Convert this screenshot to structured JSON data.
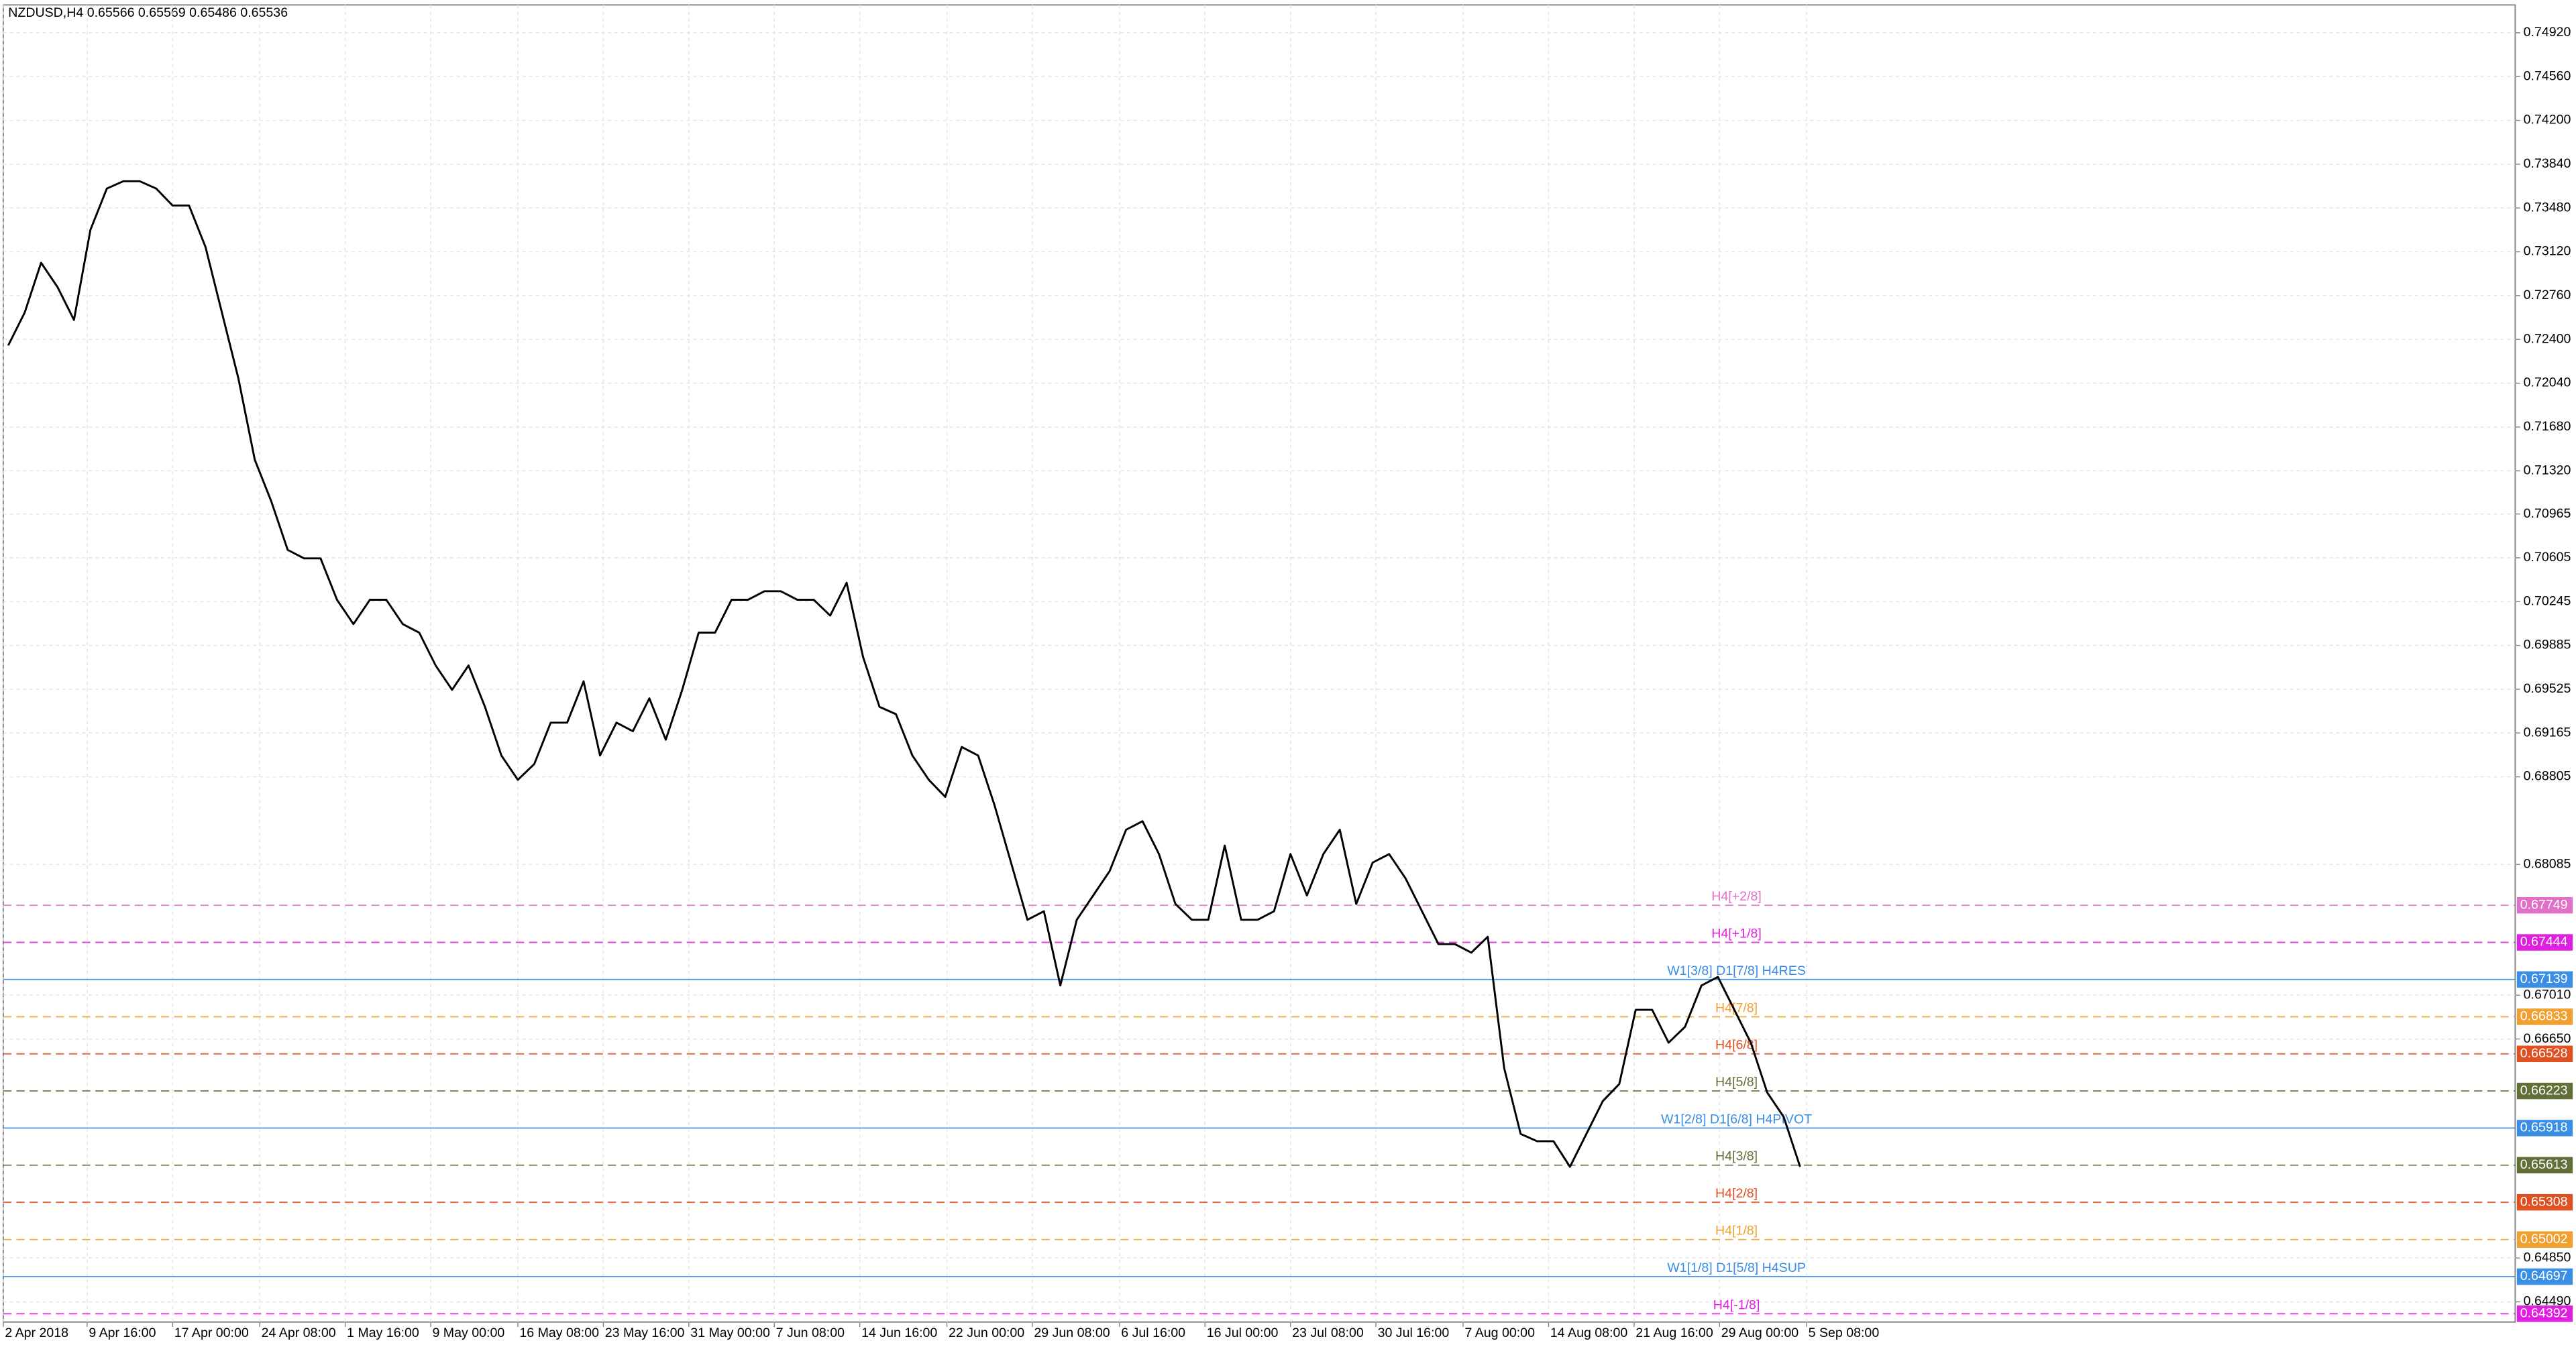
{
  "chart_data": {
    "type": "line",
    "title": "NZDUSD,H4  0.65566 0.65569 0.65486 0.65536",
    "x": [
      0,
      1,
      2,
      3,
      4,
      5,
      6,
      7,
      8,
      9,
      10,
      11,
      12,
      13,
      14,
      15,
      16,
      17,
      18,
      19,
      20,
      21,
      22,
      23,
      24,
      25,
      26,
      27,
      28,
      29,
      30,
      31,
      32,
      33,
      34,
      35,
      36,
      37,
      38,
      39,
      40,
      41,
      42,
      43,
      44,
      45,
      46,
      47,
      48,
      49,
      50,
      51,
      52,
      53,
      54,
      55,
      56,
      57,
      58,
      59,
      60,
      61,
      62,
      63,
      64,
      65,
      66,
      67,
      68,
      69,
      70,
      71,
      72,
      73,
      74,
      75,
      76,
      77,
      78,
      79,
      80,
      81,
      82,
      83,
      84,
      85,
      86,
      87,
      88,
      89,
      90,
      91,
      92,
      93,
      94,
      95,
      96,
      97,
      98,
      99,
      100,
      101,
      102,
      103,
      104,
      105,
      106,
      107,
      108,
      109
    ],
    "series": [
      {
        "name": "NZDUSD",
        "color": "#000000",
        "values": [
          0.7235,
          0.7262,
          0.7303,
          0.7283,
          0.7256,
          0.733,
          0.7364,
          0.737,
          0.737,
          0.7364,
          0.735,
          0.735,
          0.7316,
          0.7262,
          0.7208,
          0.7141,
          0.7107,
          0.7067,
          0.706,
          0.706,
          0.7026,
          0.7006,
          0.7026,
          0.7026,
          0.7006,
          0.6999,
          0.6972,
          0.6952,
          0.6972,
          0.6938,
          0.6898,
          0.6878,
          0.6891,
          0.6925,
          0.6925,
          0.6959,
          0.6898,
          0.6925,
          0.6918,
          0.6945,
          0.6911,
          0.6952,
          0.6999,
          0.6999,
          0.7026,
          0.7026,
          0.7033,
          0.7033,
          0.7026,
          0.7026,
          0.7013,
          0.704,
          0.6979,
          0.6938,
          0.6932,
          0.6898,
          0.6878,
          0.6864,
          0.6905,
          0.6898,
          0.6857,
          0.681,
          0.6763,
          0.677,
          0.6709,
          0.6763,
          0.6783,
          0.6803,
          0.6837,
          0.6844,
          0.6817,
          0.6776,
          0.6763,
          0.6763,
          0.6824,
          0.6763,
          0.6763,
          0.677,
          0.6817,
          0.6783,
          0.6817,
          0.6837,
          0.6776,
          0.681,
          0.6817,
          0.6797,
          0.677,
          0.6743,
          0.6743,
          0.6736,
          0.6749,
          0.6641,
          0.6587,
          0.6581,
          0.6581,
          0.656,
          0.6587,
          0.6614,
          0.6628,
          0.6689,
          0.6689,
          0.6662,
          0.6675,
          0.6709,
          0.6716,
          0.6689,
          0.6662,
          0.6621,
          0.6601,
          0.656
        ]
      }
    ],
    "xlim": [
      -0.3,
      152.5
    ],
    "xticks": [
      {
        "value": -0.3,
        "label": "2 Apr 2018"
      },
      {
        "value": 4.8,
        "label": "9 Apr 16:00"
      },
      {
        "value": 10.0,
        "label": "17 Apr 00:00"
      },
      {
        "value": 15.3,
        "label": "24 Apr 08:00"
      },
      {
        "value": 20.5,
        "label": "1 May 16:00"
      },
      {
        "value": 25.7,
        "label": "9 May 00:00"
      },
      {
        "value": 31.0,
        "label": "16 May 08:00"
      },
      {
        "value": 36.2,
        "label": "23 May 16:00"
      },
      {
        "value": 41.4,
        "label": "31 May 00:00"
      },
      {
        "value": 46.6,
        "label": "7 Jun 08:00"
      },
      {
        "value": 51.8,
        "label": "14 Jun 16:00"
      },
      {
        "value": 57.1,
        "label": "22 Jun 00:00"
      },
      {
        "value": 62.3,
        "label": "29 Jun 08:00"
      },
      {
        "value": 67.6,
        "label": "6 Jul 16:00"
      },
      {
        "value": 72.8,
        "label": "16 Jul 00:00"
      },
      {
        "value": 78.0,
        "label": "23 Jul 08:00"
      },
      {
        "value": 83.2,
        "label": "30 Jul 16:00"
      },
      {
        "value": 88.5,
        "label": "7 Aug 00:00"
      },
      {
        "value": 93.7,
        "label": "14 Aug 08:00"
      },
      {
        "value": 98.9,
        "label": "21 Aug 16:00"
      },
      {
        "value": 104.1,
        "label": "29 Aug 00:00"
      },
      {
        "value": 109.4,
        "label": "5 Sep 08:00"
      }
    ],
    "ylim": [
      0.64324,
      0.75149
    ],
    "yticks": [
      {
        "value": 0.7492,
        "label": "0.74920"
      },
      {
        "value": 0.7456,
        "label": "0.74560"
      },
      {
        "value": 0.742,
        "label": "0.74200"
      },
      {
        "value": 0.7384,
        "label": "0.73840"
      },
      {
        "value": 0.7348,
        "label": "0.73480"
      },
      {
        "value": 0.7312,
        "label": "0.73120"
      },
      {
        "value": 0.7276,
        "label": "0.72760"
      },
      {
        "value": 0.724,
        "label": "0.72400"
      },
      {
        "value": 0.7204,
        "label": "0.72040"
      },
      {
        "value": 0.7168,
        "label": "0.71680"
      },
      {
        "value": 0.7132,
        "label": "0.71320"
      },
      0.70965,
      0.70605,
      0.70245,
      0.69885,
      0.69525,
      0.69165,
      0.68805,
      0.68085,
      {
        "value": 0.6701,
        "label": "0.67010"
      },
      {
        "value": 0.6665,
        "label": "0.66650"
      },
      {
        "value": 0.6485,
        "label": "0.64850"
      },
      {
        "value": 0.6449,
        "label": "0.64490"
      }
    ],
    "grid": true,
    "levels": [
      {
        "label": "H4[+2/8]",
        "value": 0.67749,
        "color": "#e070c8",
        "dashed": true
      },
      {
        "label": "H4[+1/8]",
        "value": 0.67444,
        "color": "#e020e0",
        "dashed": true
      },
      {
        "label": "W1[3/8] D1[7/8] H4RES",
        "value": 0.67139,
        "color": "#3a8ee6",
        "dashed": false
      },
      {
        "label": "H4[7/8]",
        "value": 0.66833,
        "color": "#f0a030",
        "dashed": true
      },
      {
        "label": "H4[6/8]",
        "value": 0.66528,
        "color": "#e05020",
        "dashed": true
      },
      {
        "label": "H4[5/8]",
        "value": 0.66223,
        "color": "#607038",
        "dashed": true
      },
      {
        "label": "W1[2/8] D1[6/8] H4PIVOT",
        "value": 0.65918,
        "color": "#3a8ee6",
        "dashed": false
      },
      {
        "label": "H4[3/8]",
        "value": 0.65613,
        "color": "#607038",
        "dashed": true
      },
      {
        "label": "H4[2/8]",
        "value": 0.65308,
        "color": "#e05020",
        "dashed": true
      },
      {
        "label": "H4[1/8]",
        "value": 0.65002,
        "color": "#f0a030",
        "dashed": true
      },
      {
        "label": "W1[1/8] D1[5/8] H4SUP",
        "value": 0.64697,
        "color": "#3a8ee6",
        "dashed": false
      },
      {
        "label": "H4[-1/8]",
        "value": 0.64392,
        "color": "#e020e0",
        "dashed": true
      }
    ]
  }
}
